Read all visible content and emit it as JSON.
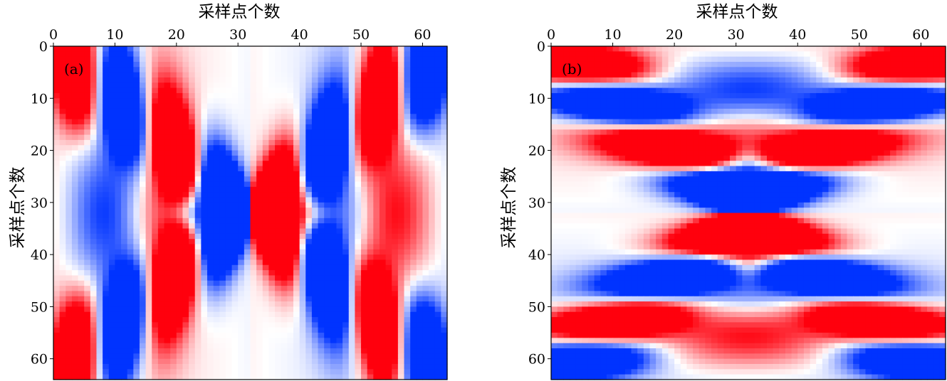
{
  "chart_data": [
    {
      "type": "heatmap",
      "panel_label": "(a)",
      "xlabel": "采样点个数",
      "ylabel": "采样点个数",
      "xlim": [
        0,
        64
      ],
      "ylim": [
        0,
        64
      ],
      "x_axis_position": "top",
      "y_axis_inverted": true,
      "xticks": [
        0,
        10,
        20,
        30,
        40,
        50,
        60
      ],
      "yticks": [
        0,
        10,
        20,
        30,
        40,
        50,
        60
      ],
      "colormap": "blue-white-red",
      "pattern": "antisymmetric across vertical center line (x≈32), X-shaped lobes"
    },
    {
      "type": "heatmap",
      "panel_label": "(b)",
      "xlabel": "采样点个数",
      "ylabel": "采样点个数",
      "xlim": [
        0,
        64
      ],
      "ylim": [
        0,
        64
      ],
      "x_axis_position": "top",
      "y_axis_inverted": true,
      "xticks": [
        0,
        10,
        20,
        30,
        40,
        50,
        60
      ],
      "yticks": [
        0,
        10,
        20,
        30,
        40,
        50,
        60
      ],
      "colormap": "blue-white-red",
      "pattern": "antisymmetric across horizontal center line (y≈32), X-shaped lobes"
    }
  ],
  "colors": {
    "positive": "#ff0000",
    "negative": "#0033ff",
    "zero": "#ffffff"
  }
}
